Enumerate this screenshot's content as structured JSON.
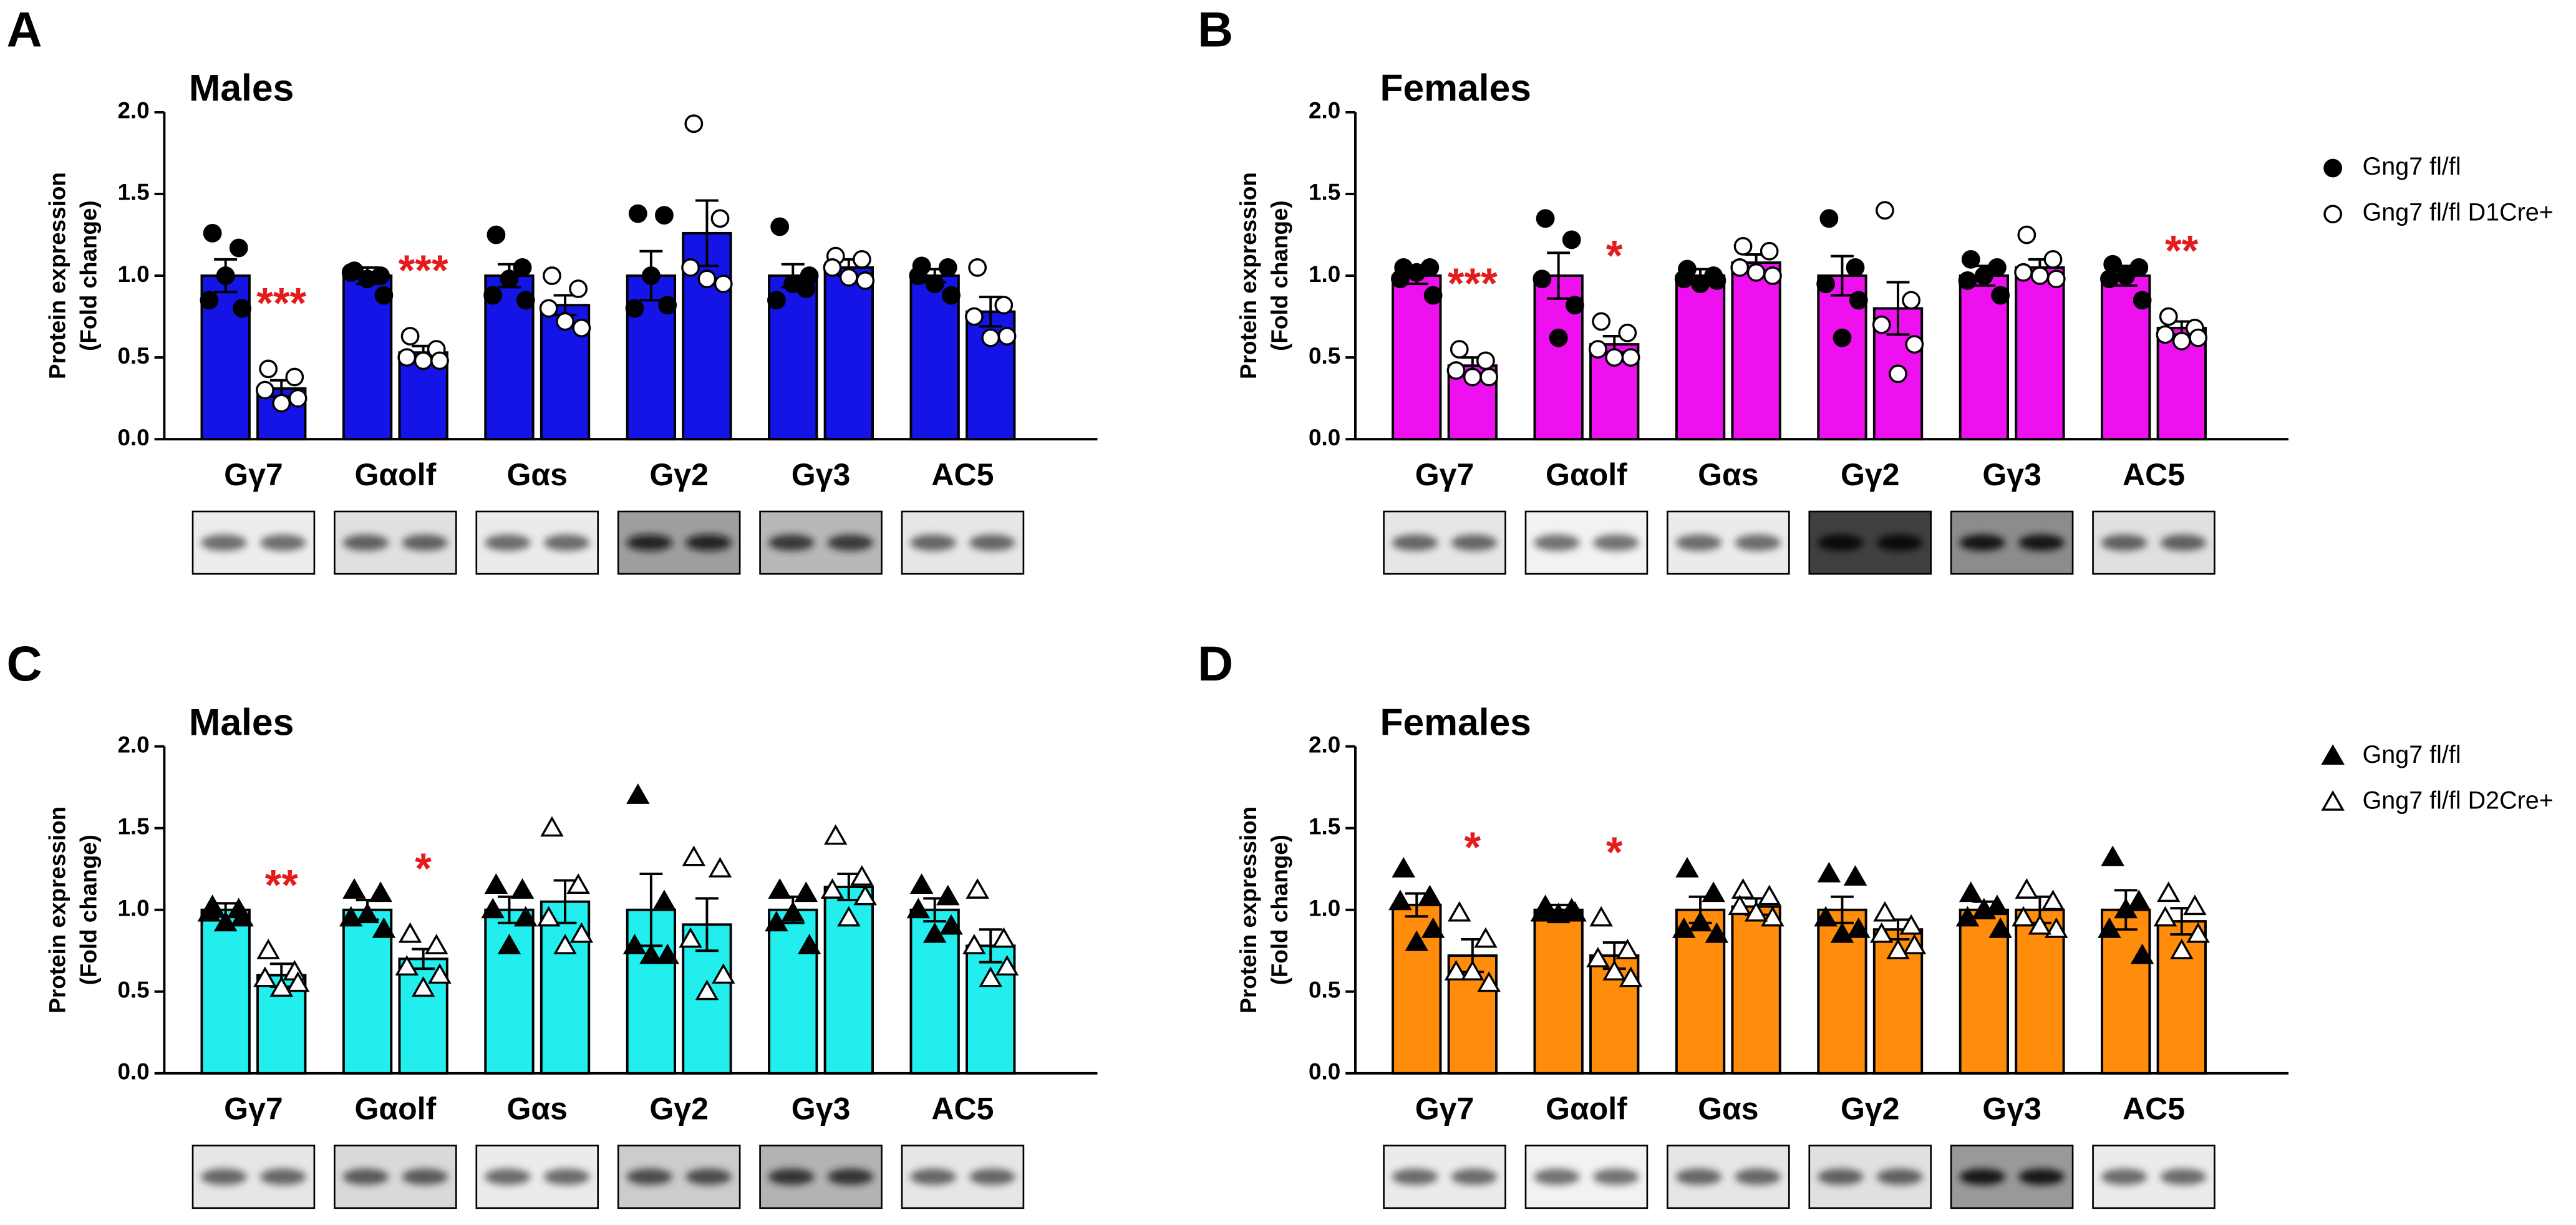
{
  "chart_data": [
    {
      "type": "bar",
      "panel_label": "A",
      "title": "Males",
      "ylabel": [
        "Protein expression",
        "(Fold change)"
      ],
      "categories": [
        "Gγ7",
        "Gαolf",
        "Gαs",
        "Gγ2",
        "Gγ3",
        "AC5"
      ],
      "ylim": [
        0,
        2
      ],
      "yticks": [
        {
          "value": 0,
          "label": "0.0"
        },
        {
          "value": 0.5,
          "label": "0.5"
        },
        {
          "value": 1,
          "label": "1.0"
        },
        {
          "value": 1.5,
          "label": "1.5"
        },
        {
          "value": 2,
          "label": "2.0"
        }
      ],
      "marker": "circle",
      "legend": false,
      "significance": [
        "***",
        "***",
        null,
        null,
        null,
        null
      ],
      "series": [
        {
          "color": "#1414e6",
          "marker_fill": "#000000",
          "values": [
            1.0,
            1.0,
            1.0,
            1.0,
            1.0,
            1.0
          ],
          "errors": [
            0.1,
            0.05,
            0.07,
            0.15,
            0.07,
            0.04
          ],
          "points": [
            [
              1.26,
              1.17,
              0.85,
              0.8,
              1.0
            ],
            [
              1.03,
              1.0,
              1.02,
              0.88,
              0.98
            ],
            [
              1.25,
              1.05,
              0.88,
              0.85,
              0.98
            ],
            [
              1.38,
              1.37,
              0.8,
              0.82,
              1.0
            ],
            [
              1.3,
              0.92,
              0.85,
              1.0,
              0.95
            ],
            [
              1.06,
              1.05,
              1.0,
              0.88,
              0.95
            ]
          ]
        },
        {
          "color": "#1414e6",
          "marker_fill": "#ffffff",
          "values": [
            0.31,
            0.53,
            0.82,
            1.26,
            1.05,
            0.78
          ],
          "errors": [
            0.05,
            0.04,
            0.06,
            0.2,
            0.05,
            0.09
          ],
          "points": [
            [
              0.43,
              0.38,
              0.3,
              0.25,
              0.22
            ],
            [
              0.63,
              0.55,
              0.5,
              0.48,
              0.48
            ],
            [
              1.0,
              0.92,
              0.8,
              0.68,
              0.72
            ],
            [
              1.93,
              1.35,
              1.05,
              0.95,
              0.98
            ],
            [
              1.12,
              1.1,
              1.05,
              0.97,
              0.99
            ],
            [
              1.05,
              0.82,
              0.75,
              0.63,
              0.62
            ]
          ]
        }
      ]
    },
    {
      "type": "bar",
      "panel_label": "B",
      "title": "Females",
      "ylabel": [
        "Protein expression",
        "(Fold change)"
      ],
      "categories": [
        "Gγ7",
        "Gαolf",
        "Gαs",
        "Gγ2",
        "Gγ3",
        "AC5"
      ],
      "ylim": [
        0,
        2
      ],
      "yticks": [
        {
          "value": 0,
          "label": "0.0"
        },
        {
          "value": 0.5,
          "label": "0.5"
        },
        {
          "value": 1,
          "label": "1.0"
        },
        {
          "value": 1.5,
          "label": "1.5"
        },
        {
          "value": 2,
          "label": "2.0"
        }
      ],
      "marker": "circle",
      "legend": true,
      "significance": [
        "***",
        "*",
        null,
        null,
        null,
        "**"
      ],
      "series": [
        {
          "name": "Gng7 fl/fl",
          "color": "#ee10ee",
          "marker_fill": "#000000",
          "values": [
            1.0,
            1.0,
            1.0,
            1.0,
            1.0,
            1.0
          ],
          "errors": [
            0.05,
            0.14,
            0.04,
            0.12,
            0.06,
            0.06
          ],
          "points": [
            [
              1.05,
              1.05,
              0.98,
              0.88,
              1.02
            ],
            [
              1.35,
              1.22,
              0.98,
              0.82,
              0.62
            ],
            [
              1.04,
              1.0,
              0.98,
              0.97,
              0.95
            ],
            [
              1.35,
              1.05,
              0.95,
              0.85,
              0.62
            ],
            [
              1.1,
              1.05,
              0.97,
              0.88,
              1.0
            ],
            [
              1.07,
              1.05,
              0.98,
              0.85,
              1.0
            ]
          ]
        },
        {
          "name": "Gng7 fl/fl D1Cre+",
          "color": "#ee10ee",
          "marker_fill": "#ffffff",
          "values": [
            0.45,
            0.58,
            1.08,
            0.8,
            1.05,
            0.68
          ],
          "errors": [
            0.05,
            0.05,
            0.05,
            0.16,
            0.05,
            0.04
          ],
          "points": [
            [
              0.55,
              0.48,
              0.42,
              0.38,
              0.38
            ],
            [
              0.72,
              0.65,
              0.55,
              0.5,
              0.5
            ],
            [
              1.18,
              1.15,
              1.05,
              1.0,
              1.02
            ],
            [
              1.4,
              0.85,
              0.7,
              0.58,
              0.4
            ],
            [
              1.25,
              1.1,
              1.02,
              0.98,
              1.0
            ],
            [
              0.75,
              0.68,
              0.64,
              0.62,
              0.6
            ]
          ]
        }
      ]
    },
    {
      "type": "bar",
      "panel_label": "C",
      "title": "Males",
      "ylabel": [
        "Protein expression",
        "(Fold change)"
      ],
      "categories": [
        "Gγ7",
        "Gαolf",
        "Gαs",
        "Gγ2",
        "Gγ3",
        "AC5"
      ],
      "ylim": [
        0,
        2
      ],
      "yticks": [
        {
          "value": 0,
          "label": "0.0"
        },
        {
          "value": 0.5,
          "label": "0.5"
        },
        {
          "value": 1,
          "label": "1.0"
        },
        {
          "value": 1.5,
          "label": "1.5"
        },
        {
          "value": 2,
          "label": "2.0"
        }
      ],
      "marker": "triangle",
      "legend": false,
      "significance": [
        "**",
        "*",
        null,
        null,
        null,
        null
      ],
      "series": [
        {
          "color": "#22eeee",
          "marker_fill": "#000000",
          "values": [
            1.0,
            1.0,
            1.0,
            1.0,
            1.0,
            1.0
          ],
          "errors": [
            0.04,
            0.06,
            0.08,
            0.22,
            0.08,
            0.07
          ],
          "points": [
            [
              1.02,
              1.0,
              0.98,
              0.95,
              0.92
            ],
            [
              1.12,
              1.1,
              0.95,
              0.88,
              0.97
            ],
            [
              1.15,
              1.12,
              1.0,
              0.95,
              0.78
            ],
            [
              1.7,
              1.05,
              0.78,
              0.72,
              0.72
            ],
            [
              1.12,
              1.1,
              0.92,
              0.78,
              0.98
            ],
            [
              1.15,
              1.08,
              1.0,
              0.9,
              0.85
            ]
          ]
        },
        {
          "color": "#22eeee",
          "marker_fill": "#ffffff",
          "values": [
            0.6,
            0.7,
            1.05,
            0.91,
            1.14,
            0.78
          ],
          "errors": [
            0.07,
            0.06,
            0.13,
            0.16,
            0.08,
            0.1
          ],
          "points": [
            [
              0.75,
              0.62,
              0.58,
              0.55,
              0.52
            ],
            [
              0.85,
              0.78,
              0.65,
              0.6,
              0.52
            ],
            [
              1.5,
              1.15,
              0.95,
              0.85,
              0.78
            ],
            [
              1.32,
              1.25,
              0.82,
              0.6,
              0.5
            ],
            [
              1.45,
              1.2,
              1.12,
              1.08,
              0.95
            ],
            [
              1.12,
              0.82,
              0.78,
              0.65,
              0.58
            ]
          ]
        }
      ]
    },
    {
      "type": "bar",
      "panel_label": "D",
      "title": "Females",
      "ylabel": [
        "Protein expression",
        "(Fold change)"
      ],
      "categories": [
        "Gγ7",
        "Gαolf",
        "Gαs",
        "Gγ2",
        "Gγ3",
        "AC5"
      ],
      "ylim": [
        0,
        2
      ],
      "yticks": [
        {
          "value": 0,
          "label": "0.0"
        },
        {
          "value": 0.5,
          "label": "0.5"
        },
        {
          "value": 1,
          "label": "1.0"
        },
        {
          "value": 1.5,
          "label": "1.5"
        },
        {
          "value": 2,
          "label": "2.0"
        }
      ],
      "marker": "triangle",
      "legend": true,
      "significance": [
        "*",
        "*",
        null,
        null,
        null,
        null
      ],
      "series": [
        {
          "name": "Gng7 fl/fl",
          "color": "#ff8c0a",
          "marker_fill": "#000000",
          "values": [
            1.03,
            1.0,
            1.0,
            1.0,
            1.0,
            1.0
          ],
          "errors": [
            0.07,
            0.03,
            0.08,
            0.08,
            0.05,
            0.12
          ],
          "points": [
            [
              1.25,
              1.08,
              1.05,
              0.88,
              0.8
            ],
            [
              1.02,
              1.0,
              0.98,
              0.98,
              0.97
            ],
            [
              1.25,
              1.1,
              0.88,
              0.85,
              0.92
            ],
            [
              1.22,
              1.2,
              0.95,
              0.88,
              0.85
            ],
            [
              1.1,
              1.02,
              0.95,
              0.88,
              1.0
            ],
            [
              1.32,
              1.05,
              0.88,
              0.72,
              1.0
            ]
          ]
        },
        {
          "name": "Gng7 fl/fl D2Cre+",
          "color": "#ff8c0a",
          "marker_fill": "#ffffff",
          "values": [
            0.72,
            0.72,
            1.02,
            0.88,
            1.0,
            0.93
          ],
          "errors": [
            0.1,
            0.08,
            0.05,
            0.06,
            0.08,
            0.08
          ],
          "points": [
            [
              0.98,
              0.82,
              0.62,
              0.55,
              0.62
            ],
            [
              0.95,
              0.75,
              0.7,
              0.58,
              0.62
            ],
            [
              1.12,
              1.08,
              1.02,
              0.95,
              0.98
            ],
            [
              0.98,
              0.9,
              0.85,
              0.78,
              0.75
            ],
            [
              1.12,
              1.05,
              0.95,
              0.88,
              0.9
            ],
            [
              1.1,
              1.02,
              0.95,
              0.85,
              0.75
            ]
          ]
        }
      ]
    }
  ]
}
